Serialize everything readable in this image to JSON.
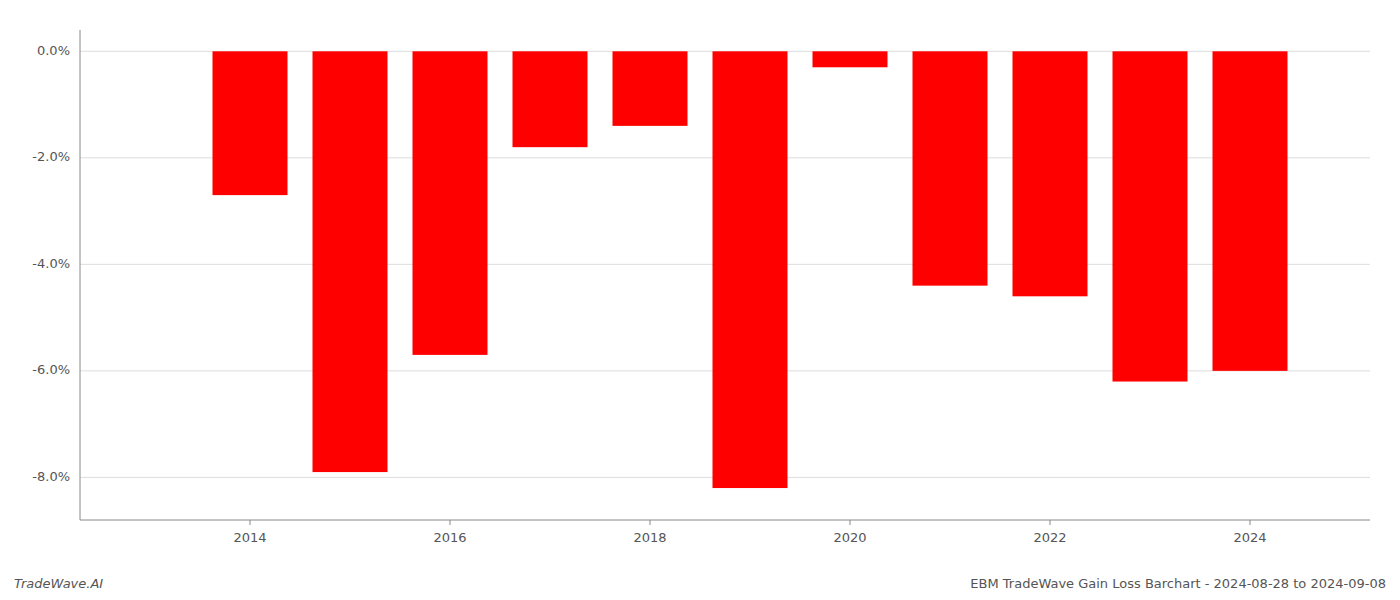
{
  "chart_data": {
    "type": "bar",
    "title": "EBM TradeWave Gain Loss Barchart - 2024-08-28 to 2024-09-08",
    "annotations": [
      "TradeWave.AI"
    ],
    "x": [
      2013,
      2014,
      2015,
      2016,
      2017,
      2018,
      2019,
      2020,
      2021,
      2022,
      2023,
      2024
    ],
    "values": [
      0.0,
      -0.027,
      -0.079,
      -0.057,
      -0.018,
      -0.014,
      -0.082,
      -0.003,
      -0.044,
      -0.046,
      -0.062,
      -0.06
    ],
    "color": "#ff0000",
    "xlim": [
      2012.3,
      2025.2
    ],
    "xticks": [
      2014,
      2016,
      2018,
      2020,
      2022,
      2024
    ],
    "ylim": [
      -0.088,
      0.004
    ],
    "yticks": [
      {
        "value": 0.0,
        "label": "0.0%"
      },
      {
        "value": -0.02,
        "label": "-2.0%"
      },
      {
        "value": -0.04,
        "label": "-4.0%"
      },
      {
        "value": -0.06,
        "label": "-6.0%"
      },
      {
        "value": -0.08,
        "label": "-8.0%"
      }
    ],
    "grid": true
  }
}
